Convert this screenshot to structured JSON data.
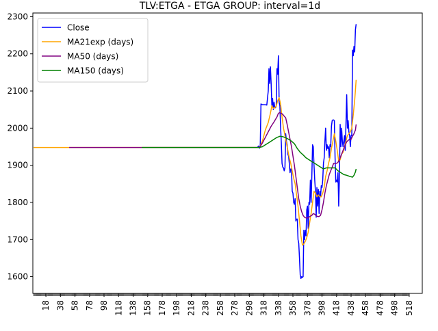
{
  "chart_data": {
    "type": "line",
    "title": "TLV:ETGA - ETGA GROUP: interval=1d",
    "xlabel": "",
    "ylabel": "",
    "xlim": [
      0,
      536
    ],
    "ylim": [
      1555,
      2310
    ],
    "y_ticks": [
      1600,
      1700,
      1800,
      1900,
      2000,
      2100,
      2200,
      2300
    ],
    "x_ticks": [
      18,
      38,
      58,
      78,
      98,
      118,
      138,
      158,
      178,
      198,
      218,
      238,
      258,
      278,
      298,
      318,
      338,
      358,
      378,
      398,
      418,
      438,
      458,
      478,
      498,
      518
    ],
    "grid": false,
    "legend": "top-left",
    "series": [
      {
        "name": "Close",
        "color": "#0000ff",
        "points": [
          [
            309,
            1948
          ],
          [
            311,
            1952
          ],
          [
            312,
            1946
          ],
          [
            313,
            1952
          ],
          [
            314,
            2065
          ],
          [
            316,
            2063
          ],
          [
            318,
            2063
          ],
          [
            320,
            2063
          ],
          [
            322,
            2062
          ],
          [
            324,
            2100
          ],
          [
            325,
            2160
          ],
          [
            326,
            2120
          ],
          [
            327,
            2165
          ],
          [
            328,
            2120
          ],
          [
            329,
            2060
          ],
          [
            330,
            2080
          ],
          [
            331,
            2050
          ],
          [
            332,
            2070
          ],
          [
            333,
            2055
          ],
          [
            334,
            2055
          ],
          [
            335,
            2060
          ],
          [
            336,
            2160
          ],
          [
            337,
            2145
          ],
          [
            338,
            2195
          ],
          [
            339,
            2070
          ],
          [
            340,
            2060
          ],
          [
            341,
            2004
          ],
          [
            342,
            1960
          ],
          [
            343,
            1905
          ],
          [
            344,
            1895
          ],
          [
            345,
            1893
          ],
          [
            346,
            1885
          ],
          [
            347,
            1893
          ],
          [
            348,
            1985
          ],
          [
            349,
            1965
          ],
          [
            350,
            1955
          ],
          [
            351,
            1930
          ],
          [
            352,
            1925
          ],
          [
            353,
            1905
          ],
          [
            354,
            1880
          ],
          [
            355,
            1890
          ],
          [
            356,
            1890
          ],
          [
            357,
            1830
          ],
          [
            358,
            1825
          ],
          [
            359,
            1800
          ],
          [
            360,
            1795
          ],
          [
            361,
            1810
          ],
          [
            362,
            1750
          ],
          [
            363,
            1755
          ],
          [
            364,
            1755
          ],
          [
            365,
            1700
          ],
          [
            366,
            1690
          ],
          [
            367,
            1650
          ],
          [
            368,
            1605
          ],
          [
            369,
            1595
          ],
          [
            370,
            1600
          ],
          [
            371,
            1598
          ],
          [
            372,
            1600
          ],
          [
            373,
            1725
          ],
          [
            374,
            1700
          ],
          [
            375,
            1725
          ],
          [
            376,
            1710
          ],
          [
            377,
            1780
          ],
          [
            378,
            1790
          ],
          [
            379,
            1730
          ],
          [
            380,
            1800
          ],
          [
            381,
            1795
          ],
          [
            382,
            1860
          ],
          [
            383,
            1800
          ],
          [
            384,
            1870
          ],
          [
            385,
            1955
          ],
          [
            386,
            1950
          ],
          [
            387,
            1900
          ],
          [
            388,
            1860
          ],
          [
            389,
            1830
          ],
          [
            390,
            1760
          ],
          [
            391,
            1840
          ],
          [
            392,
            1790
          ],
          [
            393,
            1835
          ],
          [
            394,
            1770
          ],
          [
            395,
            1830
          ],
          [
            396,
            1815
          ],
          [
            397,
            1845
          ],
          [
            398,
            1840
          ],
          [
            399,
            1860
          ],
          [
            400,
            1905
          ],
          [
            401,
            1920
          ],
          [
            402,
            1965
          ],
          [
            403,
            2000
          ],
          [
            404,
            1940
          ],
          [
            405,
            1955
          ],
          [
            406,
            1945
          ],
          [
            407,
            1950
          ],
          [
            408,
            1920
          ],
          [
            409,
            1955
          ],
          [
            410,
            1950
          ],
          [
            411,
            2005
          ],
          [
            412,
            2020
          ],
          [
            413,
            2022
          ],
          [
            414,
            2022
          ],
          [
            415,
            2020
          ],
          [
            416,
            1920
          ],
          [
            417,
            1855
          ],
          [
            418,
            1860
          ],
          [
            419,
            1855
          ],
          [
            420,
            1880
          ],
          [
            421,
            1790
          ],
          [
            422,
            1870
          ],
          [
            423,
            2010
          ],
          [
            424,
            1950
          ],
          [
            425,
            2000
          ],
          [
            426,
            1965
          ],
          [
            427,
            1950
          ],
          [
            428,
            1965
          ],
          [
            429,
            1980
          ],
          [
            430,
            1940
          ],
          [
            431,
            2012
          ],
          [
            432,
            2090
          ],
          [
            433,
            2000
          ],
          [
            434,
            2020
          ],
          [
            435,
            1990
          ],
          [
            436,
            1980
          ],
          [
            437,
            1950
          ],
          [
            438,
            1980
          ],
          [
            439,
            1980
          ],
          [
            440,
            2210
          ],
          [
            441,
            2195
          ],
          [
            442,
            2220
          ],
          [
            443,
            2205
          ],
          [
            444,
            2265
          ],
          [
            445,
            2280
          ]
        ]
      },
      {
        "name": "MA21exp (days)",
        "color": "#ffa500",
        "points": [
          [
            1,
            1948
          ],
          [
            50,
            1948
          ],
          [
            100,
            1948
          ],
          [
            150,
            1948
          ],
          [
            200,
            1948
          ],
          [
            250,
            1948
          ],
          [
            300,
            1948
          ],
          [
            312,
            1948
          ],
          [
            316,
            1965
          ],
          [
            320,
            1995
          ],
          [
            324,
            2015
          ],
          [
            327,
            2040
          ],
          [
            329,
            2060
          ],
          [
            331,
            2053
          ],
          [
            333,
            2055
          ],
          [
            335,
            2060
          ],
          [
            337,
            2074
          ],
          [
            339,
            2082
          ],
          [
            341,
            2065
          ],
          [
            343,
            2030
          ],
          [
            345,
            2000
          ],
          [
            347,
            1980
          ],
          [
            349,
            1960
          ],
          [
            351,
            1940
          ],
          [
            353,
            1920
          ],
          [
            355,
            1905
          ],
          [
            357,
            1885
          ],
          [
            359,
            1865
          ],
          [
            361,
            1850
          ],
          [
            363,
            1820
          ],
          [
            365,
            1790
          ],
          [
            367,
            1750
          ],
          [
            369,
            1710
          ],
          [
            371,
            1685
          ],
          [
            373,
            1688
          ],
          [
            375,
            1695
          ],
          [
            377,
            1705
          ],
          [
            379,
            1720
          ],
          [
            381,
            1745
          ],
          [
            383,
            1770
          ],
          [
            385,
            1800
          ],
          [
            387,
            1830
          ],
          [
            389,
            1825
          ],
          [
            391,
            1815
          ],
          [
            393,
            1820
          ],
          [
            395,
            1815
          ],
          [
            397,
            1815
          ],
          [
            399,
            1825
          ],
          [
            401,
            1840
          ],
          [
            403,
            1870
          ],
          [
            405,
            1885
          ],
          [
            407,
            1905
          ],
          [
            409,
            1920
          ],
          [
            411,
            1945
          ],
          [
            413,
            1965
          ],
          [
            415,
            1985
          ],
          [
            417,
            1965
          ],
          [
            419,
            1940
          ],
          [
            421,
            1910
          ],
          [
            423,
            1915
          ],
          [
            425,
            1930
          ],
          [
            427,
            1935
          ],
          [
            429,
            1950
          ],
          [
            431,
            1965
          ],
          [
            433,
            1980
          ],
          [
            435,
            1985
          ],
          [
            437,
            1990
          ],
          [
            439,
            2000
          ],
          [
            441,
            2035
          ],
          [
            443,
            2075
          ],
          [
            445,
            2130
          ]
        ]
      },
      {
        "name": "MA50 (days)",
        "color": "#800080",
        "points": [
          [
            50,
            1948
          ],
          [
            100,
            1948
          ],
          [
            150,
            1948
          ],
          [
            200,
            1948
          ],
          [
            250,
            1948
          ],
          [
            300,
            1948
          ],
          [
            312,
            1948
          ],
          [
            316,
            1960
          ],
          [
            320,
            1975
          ],
          [
            324,
            1990
          ],
          [
            328,
            2005
          ],
          [
            332,
            2017
          ],
          [
            336,
            2030
          ],
          [
            338,
            2040
          ],
          [
            340,
            2042
          ],
          [
            342,
            2040
          ],
          [
            344,
            2037
          ],
          [
            346,
            2032
          ],
          [
            348,
            2028
          ],
          [
            350,
            2010
          ],
          [
            352,
            1990
          ],
          [
            354,
            1970
          ],
          [
            356,
            1950
          ],
          [
            358,
            1925
          ],
          [
            360,
            1900
          ],
          [
            362,
            1870
          ],
          [
            364,
            1840
          ],
          [
            366,
            1810
          ],
          [
            368,
            1790
          ],
          [
            370,
            1775
          ],
          [
            372,
            1765
          ],
          [
            374,
            1760
          ],
          [
            376,
            1758
          ],
          [
            378,
            1758
          ],
          [
            380,
            1760
          ],
          [
            382,
            1763
          ],
          [
            384,
            1765
          ],
          [
            386,
            1770
          ],
          [
            388,
            1768
          ],
          [
            390,
            1764
          ],
          [
            392,
            1762
          ],
          [
            394,
            1762
          ],
          [
            396,
            1765
          ],
          [
            398,
            1780
          ],
          [
            400,
            1800
          ],
          [
            402,
            1825
          ],
          [
            404,
            1845
          ],
          [
            406,
            1860
          ],
          [
            408,
            1875
          ],
          [
            410,
            1885
          ],
          [
            412,
            1895
          ],
          [
            414,
            1905
          ],
          [
            416,
            1905
          ],
          [
            418,
            1905
          ],
          [
            420,
            1908
          ],
          [
            422,
            1915
          ],
          [
            424,
            1925
          ],
          [
            426,
            1935
          ],
          [
            428,
            1945
          ],
          [
            430,
            1955
          ],
          [
            432,
            1963
          ],
          [
            434,
            1967
          ],
          [
            436,
            1970
          ],
          [
            438,
            1970
          ],
          [
            440,
            1978
          ],
          [
            442,
            1985
          ],
          [
            444,
            1995
          ],
          [
            445,
            2010
          ]
        ]
      },
      {
        "name": "MA150 (days)",
        "color": "#008000",
        "points": [
          [
            150,
            1948
          ],
          [
            200,
            1948
          ],
          [
            250,
            1948
          ],
          [
            300,
            1948
          ],
          [
            312,
            1948
          ],
          [
            316,
            1950
          ],
          [
            320,
            1955
          ],
          [
            324,
            1960
          ],
          [
            328,
            1965
          ],
          [
            332,
            1970
          ],
          [
            336,
            1975
          ],
          [
            340,
            1978
          ],
          [
            344,
            1977
          ],
          [
            348,
            1974
          ],
          [
            352,
            1970
          ],
          [
            356,
            1965
          ],
          [
            360,
            1958
          ],
          [
            364,
            1945
          ],
          [
            368,
            1935
          ],
          [
            372,
            1928
          ],
          [
            376,
            1920
          ],
          [
            380,
            1915
          ],
          [
            384,
            1910
          ],
          [
            388,
            1905
          ],
          [
            392,
            1900
          ],
          [
            396,
            1895
          ],
          [
            400,
            1890
          ],
          [
            404,
            1893
          ],
          [
            408,
            1893
          ],
          [
            412,
            1893
          ],
          [
            416,
            1893
          ],
          [
            420,
            1885
          ],
          [
            424,
            1880
          ],
          [
            428,
            1875
          ],
          [
            432,
            1873
          ],
          [
            436,
            1870
          ],
          [
            440,
            1868
          ],
          [
            442,
            1873
          ],
          [
            444,
            1882
          ],
          [
            445,
            1890
          ]
        ]
      }
    ]
  }
}
